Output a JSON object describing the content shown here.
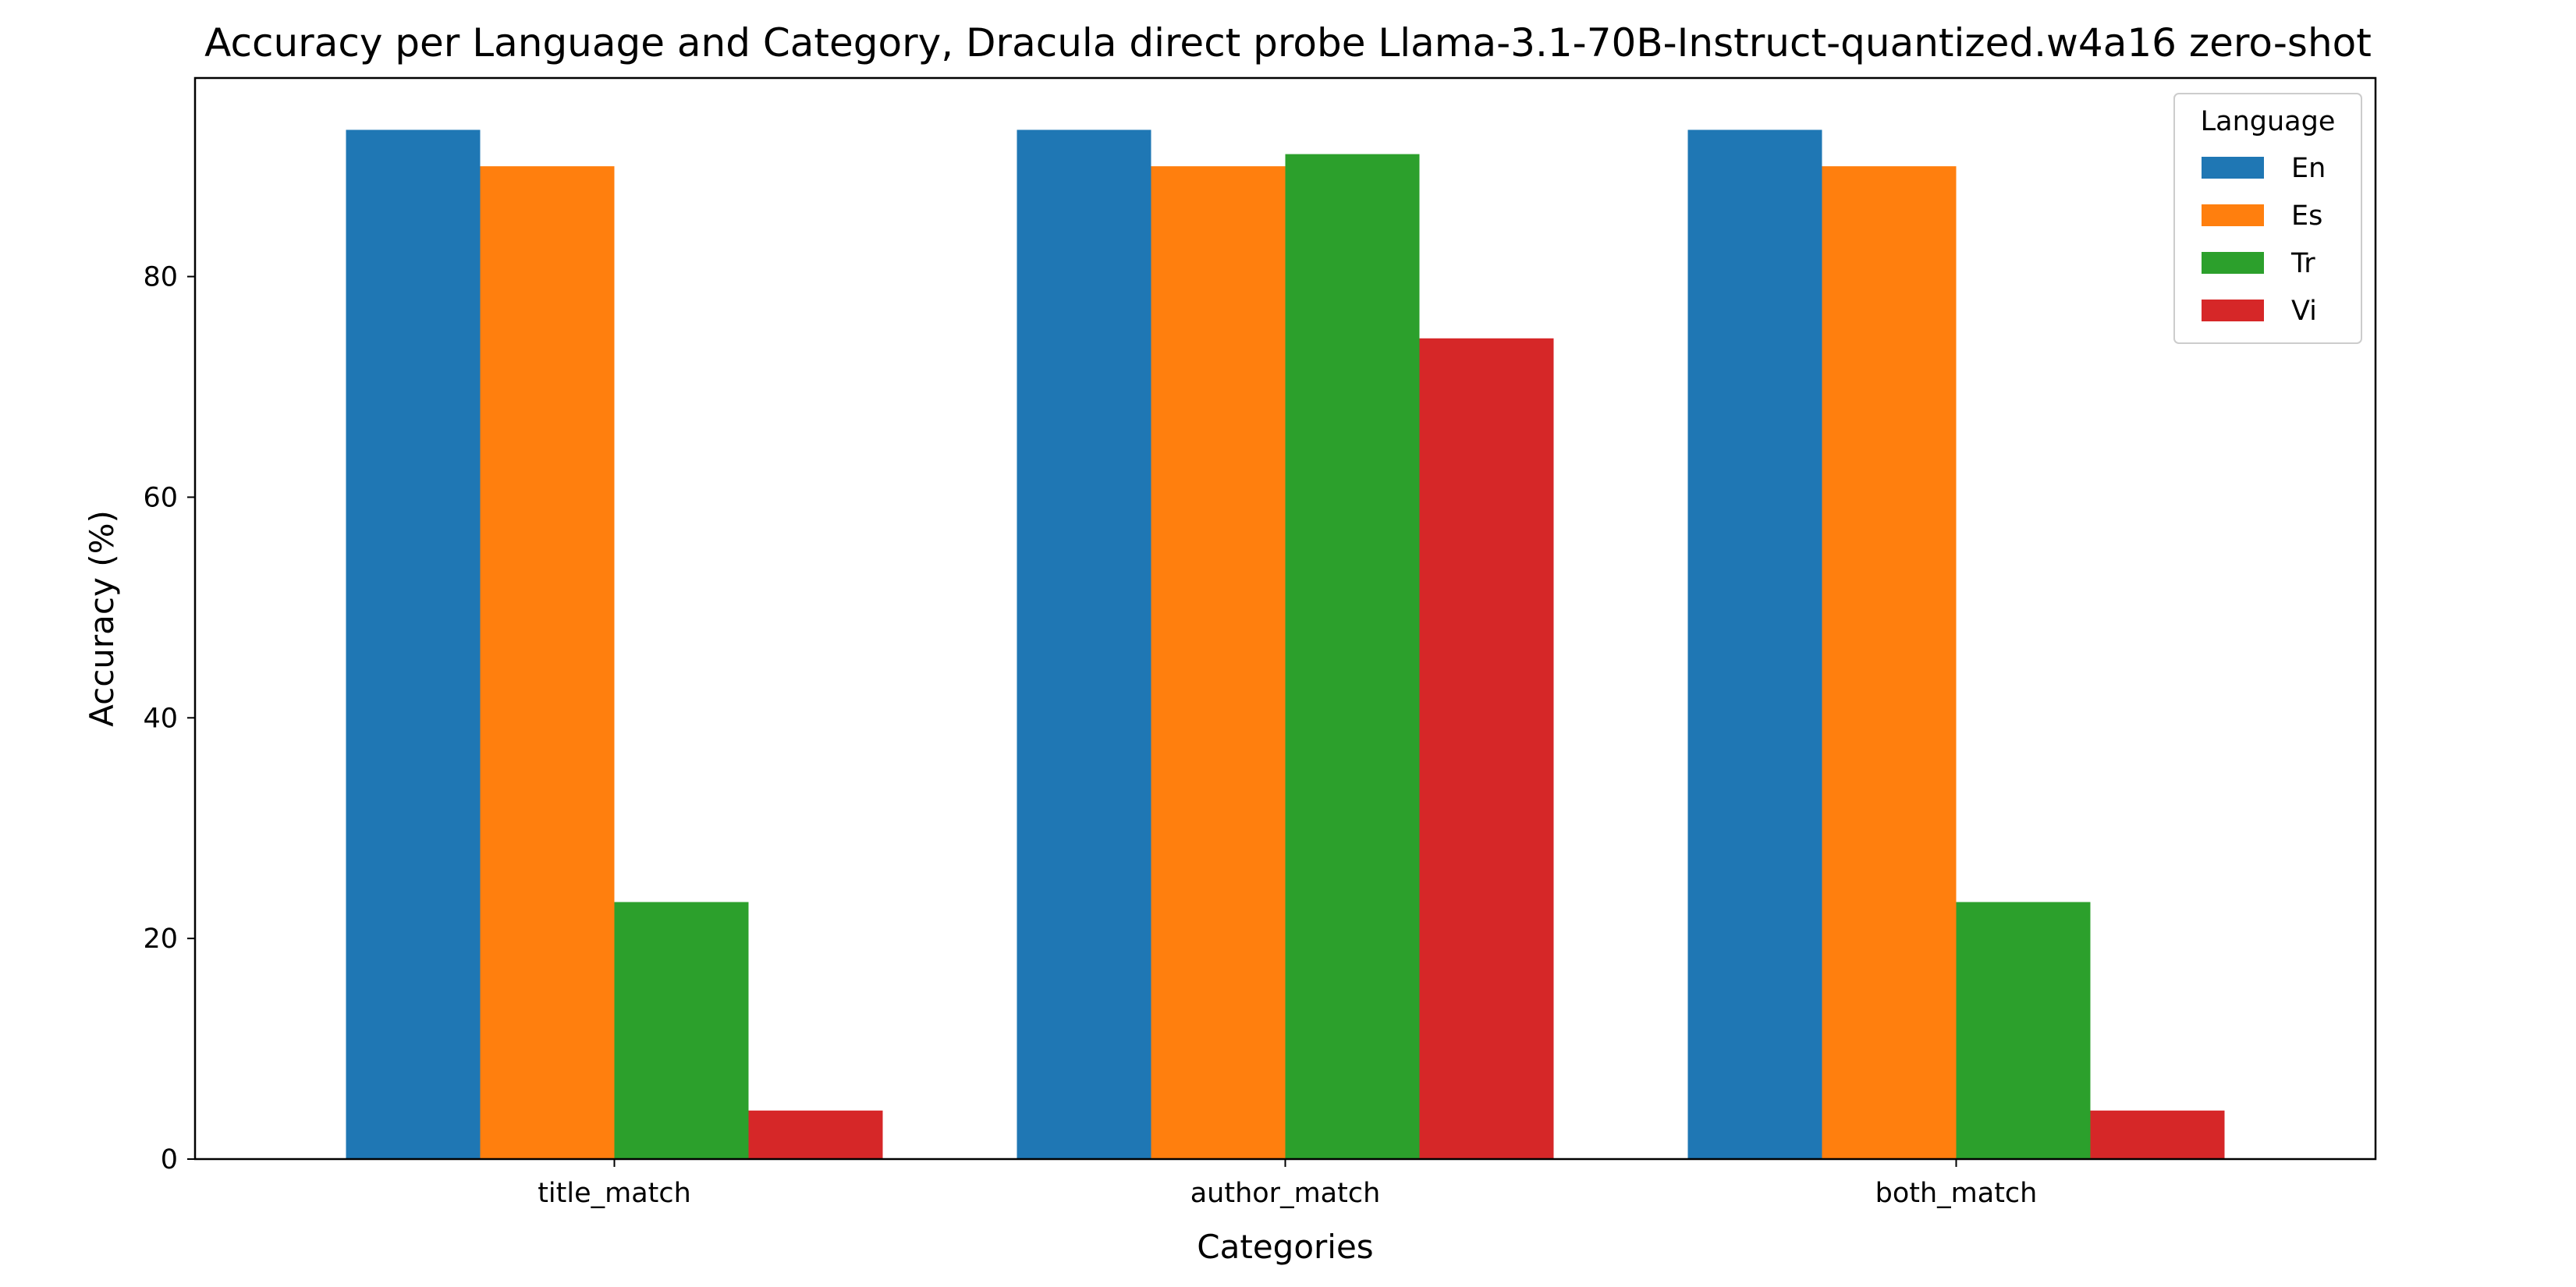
{
  "chart_data": {
    "type": "bar",
    "title": "Accuracy per Language and Category, Dracula direct probe Llama-3.1-70B-Instruct-quantized.w4a16 zero-shot",
    "xlabel": "Categories",
    "ylabel": "Accuracy (%)",
    "categories": [
      "title_match",
      "author_match",
      "both_match"
    ],
    "series": [
      {
        "name": "En",
        "color": "#1f77b4",
        "values": [
          93.3,
          93.3,
          93.3
        ]
      },
      {
        "name": "Es",
        "color": "#ff7f0e",
        "values": [
          90.0,
          90.0,
          90.0
        ]
      },
      {
        "name": "Tr",
        "color": "#2ca02c",
        "values": [
          23.3,
          91.1,
          23.3
        ]
      },
      {
        "name": "Vi",
        "color": "#d62728",
        "values": [
          4.4,
          74.4,
          4.4
        ]
      }
    ],
    "ylim": [
      0,
      98
    ],
    "yticks": [
      "0",
      "20",
      "40",
      "60",
      "80"
    ],
    "grid": false,
    "legend": {
      "title": "Language",
      "position": "top-right"
    }
  }
}
